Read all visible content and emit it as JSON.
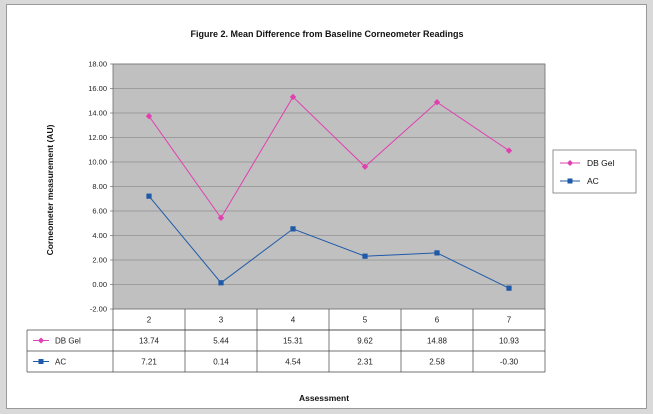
{
  "chart_data": {
    "type": "line",
    "title": "Figure 2. Mean Difference from Baseline Corneometer Readings",
    "xlabel": "Assessment",
    "ylabel": "Corneometer measurement (AU)",
    "categories": [
      "2",
      "3",
      "4",
      "5",
      "6",
      "7"
    ],
    "yticks": [
      "18.00",
      "16.00",
      "14.00",
      "12.00",
      "10.00",
      "8.00",
      "6.00",
      "4.00",
      "2.00",
      "0.00",
      "-2.00"
    ],
    "ylim": [
      -2,
      18
    ],
    "grid": true,
    "legend_position": "right",
    "series": [
      {
        "name": "DB Gel",
        "color": "#e040b0",
        "marker": "diamond",
        "values": [
          13.74,
          5.44,
          15.31,
          9.62,
          14.88,
          10.93
        ],
        "labels": [
          "13.74",
          "5.44",
          "15.31",
          "9.62",
          "14.88",
          "10.93"
        ]
      },
      {
        "name": "AC",
        "color": "#1f5aa8",
        "marker": "square",
        "values": [
          7.21,
          0.14,
          4.54,
          2.31,
          2.58,
          -0.3
        ],
        "labels": [
          "7.21",
          "0.14",
          "4.54",
          "2.31",
          "2.58",
          "-0.30"
        ]
      }
    ],
    "plot_background": "#c0c0c0"
  }
}
